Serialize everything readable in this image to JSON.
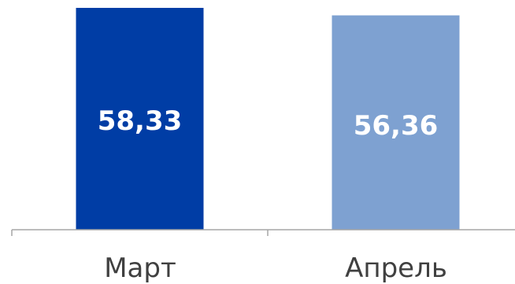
{
  "chart_data": {
    "type": "bar",
    "categories": [
      "Март",
      "Апрель"
    ],
    "values": [
      58.33,
      56.36
    ],
    "value_labels": [
      "58,33",
      "56,36"
    ],
    "colors": [
      "#003DA5",
      "#7EA1D1"
    ],
    "label_color": "#ffffff",
    "axis_color": "#A6A6A6",
    "tick_label_color": "#404040",
    "ylim": [
      0,
      60.4
    ],
    "grid": false,
    "legend": "none"
  }
}
